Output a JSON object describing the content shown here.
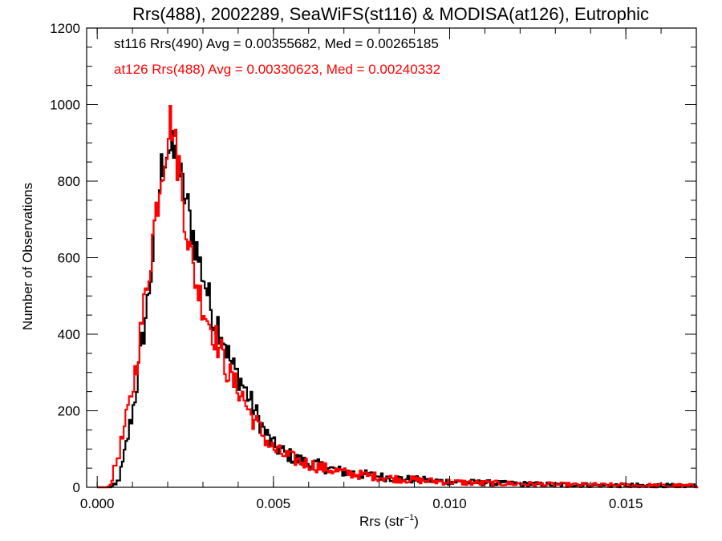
{
  "chart_data": {
    "type": "histogram",
    "title": "Rrs(488), 2002289, SeaWiFS(st116) & MODISA(at126), Eutrophic",
    "xlabel_prefix": "Rrs (str",
    "xlabel_sup": "−1",
    "xlabel_suffix": ")",
    "ylabel": "Number of Observations",
    "xlim": [
      -0.0003,
      0.017
    ],
    "ylim": [
      0,
      1200
    ],
    "x_ticks": [
      0.0,
      0.005,
      0.01,
      0.015
    ],
    "x_tick_labels": [
      "0.000",
      "0.005",
      "0.010",
      "0.015"
    ],
    "y_ticks": [
      0,
      200,
      400,
      600,
      800,
      1000,
      1200
    ],
    "y_tick_labels": [
      "0",
      "200",
      "400",
      "600",
      "800",
      "1000",
      "1200"
    ],
    "x_minor_step": 0.001,
    "y_minor_step": 50,
    "grid": false,
    "legend_position": "top-left",
    "bin_width": 5e-05,
    "series": [
      {
        "name": "st116 Rrs(490) Avg = 0.00355682, Med = 0.00265185",
        "color": "#000000",
        "points": [
          [
            0.0003,
            0
          ],
          [
            0.0005,
            5
          ],
          [
            0.0006,
            25
          ],
          [
            0.0007,
            60
          ],
          [
            0.0008,
            110
          ],
          [
            0.0009,
            160
          ],
          [
            0.001,
            210
          ],
          [
            0.0011,
            270
          ],
          [
            0.0012,
            340
          ],
          [
            0.0013,
            410
          ],
          [
            0.0014,
            480
          ],
          [
            0.0015,
            560
          ],
          [
            0.0016,
            650
          ],
          [
            0.0017,
            740
          ],
          [
            0.0018,
            830
          ],
          [
            0.0019,
            880
          ],
          [
            0.002,
            890
          ],
          [
            0.0021,
            870
          ],
          [
            0.0022,
            860
          ],
          [
            0.0023,
            820
          ],
          [
            0.0024,
            780
          ],
          [
            0.0025,
            750
          ],
          [
            0.0026,
            700
          ],
          [
            0.0027,
            660
          ],
          [
            0.0028,
            620
          ],
          [
            0.0029,
            580
          ],
          [
            0.003,
            550
          ],
          [
            0.0031,
            510
          ],
          [
            0.0032,
            470
          ],
          [
            0.0033,
            440
          ],
          [
            0.0034,
            430
          ],
          [
            0.0035,
            410
          ],
          [
            0.0036,
            380
          ],
          [
            0.0037,
            345
          ],
          [
            0.0038,
            320
          ],
          [
            0.0039,
            300
          ],
          [
            0.004,
            290
          ],
          [
            0.0041,
            270
          ],
          [
            0.0042,
            250
          ],
          [
            0.0043,
            230
          ],
          [
            0.0044,
            210
          ],
          [
            0.0045,
            190
          ],
          [
            0.0046,
            170
          ],
          [
            0.0047,
            150
          ],
          [
            0.0048,
            135
          ],
          [
            0.0049,
            120
          ],
          [
            0.005,
            108
          ],
          [
            0.0052,
            95
          ],
          [
            0.0054,
            85
          ],
          [
            0.0056,
            75
          ],
          [
            0.0058,
            68
          ],
          [
            0.006,
            62
          ],
          [
            0.0062,
            58
          ],
          [
            0.0064,
            53
          ],
          [
            0.0066,
            48
          ],
          [
            0.0068,
            43
          ],
          [
            0.007,
            40
          ],
          [
            0.0075,
            34
          ],
          [
            0.008,
            28
          ],
          [
            0.0085,
            23
          ],
          [
            0.009,
            20
          ],
          [
            0.0095,
            17
          ],
          [
            0.01,
            15
          ],
          [
            0.0105,
            13
          ],
          [
            0.011,
            12
          ],
          [
            0.0115,
            10
          ],
          [
            0.012,
            9
          ],
          [
            0.0125,
            8
          ],
          [
            0.013,
            7
          ],
          [
            0.0135,
            6
          ],
          [
            0.014,
            6
          ],
          [
            0.0145,
            5
          ],
          [
            0.015,
            5
          ],
          [
            0.0155,
            4
          ],
          [
            0.016,
            4
          ],
          [
            0.0165,
            3
          ],
          [
            0.017,
            3
          ]
        ]
      },
      {
        "name": "at126 Rrs(488) Avg = 0.00330623, Med = 0.00240332",
        "color": "#ff0000",
        "points": [
          [
            0.0003,
            0
          ],
          [
            0.0004,
            25
          ],
          [
            0.0005,
            60
          ],
          [
            0.0006,
            95
          ],
          [
            0.0007,
            130
          ],
          [
            0.0008,
            175
          ],
          [
            0.0009,
            220
          ],
          [
            0.001,
            270
          ],
          [
            0.0011,
            330
          ],
          [
            0.0012,
            400
          ],
          [
            0.0013,
            470
          ],
          [
            0.0014,
            540
          ],
          [
            0.0015,
            610
          ],
          [
            0.0016,
            690
          ],
          [
            0.0017,
            760
          ],
          [
            0.0018,
            830
          ],
          [
            0.0019,
            880
          ],
          [
            0.002,
            940
          ],
          [
            0.0021,
            960
          ],
          [
            0.0022,
            880
          ],
          [
            0.0023,
            840
          ],
          [
            0.0024,
            760
          ],
          [
            0.0025,
            690
          ],
          [
            0.0026,
            620
          ],
          [
            0.0027,
            570
          ],
          [
            0.0028,
            530
          ],
          [
            0.0029,
            500
          ],
          [
            0.003,
            470
          ],
          [
            0.0031,
            445
          ],
          [
            0.0032,
            420
          ],
          [
            0.0033,
            400
          ],
          [
            0.0034,
            375
          ],
          [
            0.0035,
            350
          ],
          [
            0.0036,
            320
          ],
          [
            0.0037,
            300
          ],
          [
            0.0038,
            280
          ],
          [
            0.0039,
            265
          ],
          [
            0.004,
            255
          ],
          [
            0.0041,
            240
          ],
          [
            0.0042,
            215
          ],
          [
            0.0043,
            195
          ],
          [
            0.0044,
            180
          ],
          [
            0.0045,
            165
          ],
          [
            0.0046,
            150
          ],
          [
            0.0047,
            135
          ],
          [
            0.0048,
            120
          ],
          [
            0.0049,
            108
          ],
          [
            0.005,
            98
          ],
          [
            0.0052,
            88
          ],
          [
            0.0054,
            80
          ],
          [
            0.0056,
            72
          ],
          [
            0.0058,
            66
          ],
          [
            0.006,
            60
          ],
          [
            0.0062,
            55
          ],
          [
            0.0064,
            50
          ],
          [
            0.0066,
            46
          ],
          [
            0.0068,
            42
          ],
          [
            0.007,
            38
          ],
          [
            0.0075,
            32
          ],
          [
            0.008,
            27
          ],
          [
            0.0085,
            22
          ],
          [
            0.009,
            19
          ],
          [
            0.0095,
            16
          ],
          [
            0.01,
            14
          ],
          [
            0.0105,
            12
          ],
          [
            0.011,
            11
          ],
          [
            0.0115,
            10
          ],
          [
            0.012,
            9
          ],
          [
            0.0125,
            8
          ],
          [
            0.013,
            7
          ],
          [
            0.0135,
            6
          ],
          [
            0.014,
            6
          ],
          [
            0.0145,
            5
          ],
          [
            0.015,
            5
          ],
          [
            0.0155,
            4
          ],
          [
            0.016,
            4
          ],
          [
            0.0165,
            3
          ],
          [
            0.017,
            3
          ]
        ]
      }
    ]
  }
}
